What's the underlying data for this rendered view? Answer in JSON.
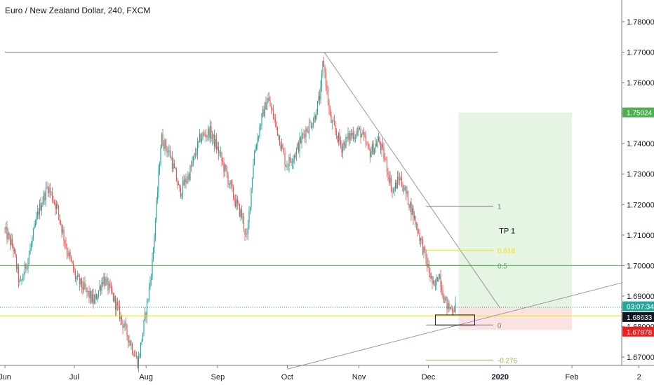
{
  "chart_data": {
    "type": "candlestick",
    "title": "Euro / New Zealand Dollar, 240, FXCM",
    "ylim": [
      1.6653,
      1.7902
    ],
    "y_ticks": [
      "1.78000",
      "1.77000",
      "1.76000",
      "1.75000",
      "1.74000",
      "1.73000",
      "1.72000",
      "1.71000",
      "1.70000",
      "1.69000",
      "1.68000",
      "1.67000"
    ],
    "y_tick_values": [
      1.78,
      1.77,
      1.76,
      1.75,
      1.74,
      1.73,
      1.72,
      1.71,
      1.7,
      1.69,
      1.68,
      1.67
    ],
    "x_ticks": [
      "Jun",
      "Jul",
      "Aug",
      "Sep",
      "Oct",
      "Nov",
      "Dec",
      "2020",
      "Feb",
      "2"
    ],
    "x_tick_dates": [
      "2019-06-01",
      "2019-07-01",
      "2019-08-01",
      "2019-09-01",
      "2019-10-01",
      "2019-11-01",
      "2019-12-01",
      "2020-01-01",
      "2020-02-01",
      "2020-03-01"
    ],
    "x_range": [
      "2019-06-01",
      "2020-03-02"
    ],
    "price_path": [
      [
        "2019-06-01",
        1.712
      ],
      [
        "2019-06-05",
        1.706
      ],
      [
        "2019-06-08",
        1.693
      ],
      [
        "2019-06-12",
        1.704
      ],
      [
        "2019-06-16",
        1.718
      ],
      [
        "2019-06-20",
        1.726
      ],
      [
        "2019-06-24",
        1.719
      ],
      [
        "2019-06-28",
        1.706
      ],
      [
        "2019-07-02",
        1.696
      ],
      [
        "2019-07-06",
        1.692
      ],
      [
        "2019-07-10",
        1.688
      ],
      [
        "2019-07-14",
        1.696
      ],
      [
        "2019-07-18",
        1.69
      ],
      [
        "2019-07-22",
        1.682
      ],
      [
        "2019-07-26",
        1.674
      ],
      [
        "2019-07-29",
        1.668
      ],
      [
        "2019-08-02",
        1.688
      ],
      [
        "2019-08-04",
        1.7
      ],
      [
        "2019-08-06",
        1.72
      ],
      [
        "2019-08-08",
        1.742
      ],
      [
        "2019-08-12",
        1.736
      ],
      [
        "2019-08-16",
        1.724
      ],
      [
        "2019-08-20",
        1.73
      ],
      [
        "2019-08-25",
        1.742
      ],
      [
        "2019-08-29",
        1.744
      ],
      [
        "2019-09-02",
        1.737
      ],
      [
        "2019-09-06",
        1.728
      ],
      [
        "2019-09-09",
        1.721
      ],
      [
        "2019-09-12",
        1.716
      ],
      [
        "2019-09-14",
        1.708
      ],
      [
        "2019-09-17",
        1.736
      ],
      [
        "2019-09-20",
        1.747
      ],
      [
        "2019-09-23",
        1.755
      ],
      [
        "2019-09-27",
        1.745
      ],
      [
        "2019-10-01",
        1.733
      ],
      [
        "2019-10-05",
        1.737
      ],
      [
        "2019-10-09",
        1.744
      ],
      [
        "2019-10-13",
        1.748
      ],
      [
        "2019-10-16",
        1.757
      ],
      [
        "2019-10-17",
        1.768
      ],
      [
        "2019-10-20",
        1.748
      ],
      [
        "2019-10-25",
        1.739
      ],
      [
        "2019-10-29",
        1.743
      ],
      [
        "2019-11-02",
        1.744
      ],
      [
        "2019-11-06",
        1.737
      ],
      [
        "2019-11-10",
        1.741
      ],
      [
        "2019-11-13",
        1.734
      ],
      [
        "2019-11-16",
        1.724
      ],
      [
        "2019-11-19",
        1.729
      ],
      [
        "2019-11-23",
        1.721
      ],
      [
        "2019-11-26",
        1.714
      ],
      [
        "2019-11-29",
        1.706
      ],
      [
        "2019-12-01",
        1.7
      ],
      [
        "2019-12-04",
        1.692
      ],
      [
        "2019-12-06",
        1.698
      ],
      [
        "2019-12-08",
        1.69
      ],
      [
        "2019-12-10",
        1.686
      ],
      [
        "2019-12-13",
        1.6863
      ]
    ],
    "trendlines": [
      {
        "from": [
          "2019-06-01",
          1.77
        ],
        "to": [
          "2019-12-31",
          1.77
        ],
        "color": "#787b86"
      },
      {
        "from": [
          "2019-10-17",
          1.77
        ],
        "to": [
          "2020-01-01",
          1.686
        ],
        "color": "#9598a1"
      },
      {
        "from": [
          "2019-10-01",
          1.666
        ],
        "to": [
          "2020-03-02",
          1.696
        ],
        "color": "#9598a1"
      }
    ],
    "horizontal_levels": [
      {
        "price": 1.7,
        "color": "#4caf50"
      },
      {
        "price": 1.6835,
        "color": "#f2e600"
      },
      {
        "price": 1.6863,
        "color": "#26a69a",
        "dotted": true
      }
    ],
    "fibonacci": [
      {
        "level": "1",
        "price": 1.7195,
        "color": "#787b86"
      },
      {
        "level": "0.618",
        "price": 1.705,
        "color": "#f2e600"
      },
      {
        "level": "0.5",
        "price": 1.7,
        "color": "#4caf50"
      },
      {
        "level": "0",
        "price": 1.6805,
        "color": "#787b86"
      },
      {
        "level": "-0.276",
        "price": 1.669,
        "color": "#8bc34a"
      }
    ],
    "position": {
      "entry": 1.6863,
      "target": 1.7502,
      "stop": 1.6788,
      "start": "2019-12-14",
      "end": "2020-02-01",
      "profit_color": "#e6f4e3",
      "loss_color": "#fbe3e3"
    },
    "annotations": [
      {
        "text": "TP 1",
        "date": "2020-01-04",
        "price": 1.7105
      }
    ],
    "price_labels": [
      {
        "text": "1.75024",
        "price": 1.75024,
        "bg": "#4caf50",
        "fg": "#ffffff"
      },
      {
        "text": "03:07:34",
        "price": 1.6864,
        "bg": "#26a69a",
        "fg": "#ffffff"
      },
      {
        "text": "1.68633",
        "price": 1.68633,
        "bg": "#131722",
        "fg": "#ffffff"
      },
      {
        "text": "1.67878",
        "price": 1.67878,
        "bg": "#ef1d1d",
        "fg": "#ffffff"
      }
    ],
    "colors": {
      "up": "#26a69a",
      "down": "#ef5350",
      "grid": "#e0e3eb",
      "axis": "#131722"
    }
  }
}
